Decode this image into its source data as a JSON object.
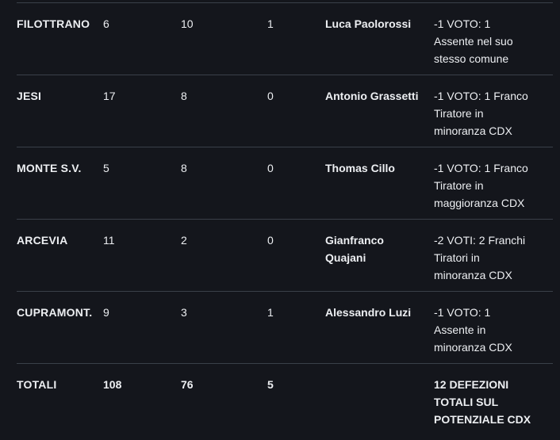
{
  "theme": {
    "background": "#14161c",
    "row_border_color": "#3a4049",
    "text_color": "#edeff2"
  },
  "table": {
    "rows": [
      {
        "label": "FILOTTRANO",
        "v1": "6",
        "v2": "10",
        "v3": "1",
        "person": "Luca Paolorossi",
        "note_lines": [
          "-1 VOTO: 1",
          "Assente nel suo",
          "stesso comune"
        ]
      },
      {
        "label": "JESI",
        "v1": "17",
        "v2": "8",
        "v3": "0",
        "person": "Antonio Grassetti",
        "note_lines": [
          "-1 VOTO: 1 Franco",
          "Tiratore in",
          "minoranza CDX"
        ]
      },
      {
        "label": "MONTE S.V.",
        "v1": "5",
        "v2": "8",
        "v3": "0",
        "person": "Thomas Cillo",
        "note_lines": [
          "-1 VOTO: 1 Franco",
          "Tiratore in",
          "maggioranza CDX"
        ]
      },
      {
        "label": "ARCEVIA",
        "v1": "11",
        "v2": "2",
        "v3": "0",
        "person": "Gianfranco Quajani",
        "note_lines": [
          "-2 VOTI: 2 Franchi",
          "Tiratori in",
          "minoranza CDX"
        ]
      },
      {
        "label": "CUPRAMONT.",
        "v1": "9",
        "v2": "3",
        "v3": "1",
        "person": "Alessandro Luzi",
        "note_lines": [
          "-1 VOTO: 1",
          "Assente in",
          "minoranza CDX"
        ]
      },
      {
        "label": "TOTALI",
        "v1": "108",
        "v2": "76",
        "v3": "5",
        "person": "",
        "note_lines": [
          "12 DEFEZIONI",
          "TOTALI SUL",
          "POTENZIALE CDX"
        ]
      }
    ]
  }
}
